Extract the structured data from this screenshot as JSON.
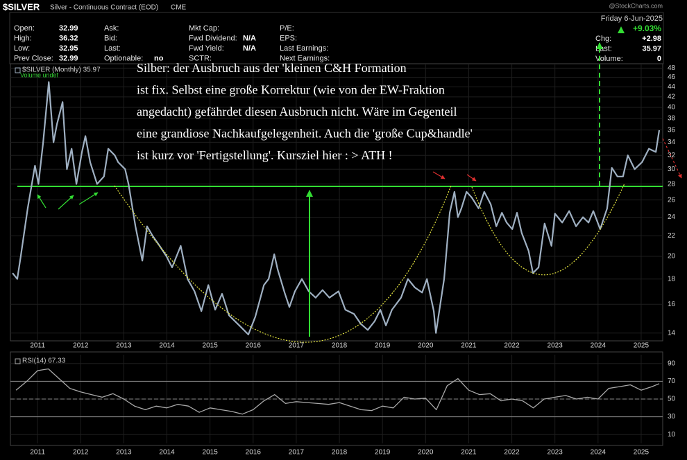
{
  "header": {
    "symbol": "$SILVER",
    "description": "Silver - Continuous Contract (EOD)",
    "exchange": "CME",
    "watermark": "@StockCharts.com",
    "columns": [
      [
        {
          "label": "Open:",
          "value": 32.99
        },
        {
          "label": "High:",
          "value": 36.32
        },
        {
          "label": "Low:",
          "value": 32.95
        },
        {
          "label": "Prev Close:",
          "value": 32.99
        }
      ],
      [
        {
          "label": "Ask:"
        },
        {
          "label": "Bid:"
        },
        {
          "label": "Last:"
        },
        {
          "label": "Optionable:",
          "value": "no"
        }
      ],
      [
        {
          "label": "Mkt Cap:"
        },
        {
          "label": "Fwd Dividend:",
          "value": "N/A"
        },
        {
          "label": "Fwd Yield:",
          "value": "N/A"
        },
        {
          "label": "SCTR:"
        }
      ],
      [
        {
          "label": "P/E:"
        },
        {
          "label": "EPS:"
        },
        {
          "label": "Last Earnings:"
        },
        {
          "label": "Next Earnings:"
        }
      ]
    ],
    "summary": {
      "date": "Friday 6-Jun-2025",
      "change_pct": "+9.03%",
      "fields": [
        {
          "label": "Chg:",
          "value": "+2.98"
        },
        {
          "label": "Last:",
          "value": 35.97
        },
        {
          "label": "Volume:",
          "value": 0
        }
      ]
    }
  },
  "chart_data": [
    {
      "type": "line",
      "log_scale": true,
      "grid": true,
      "legend_extra": "Volume undef",
      "annotation": [
        "Silber: der Ausbruch aus der 'kleinen C&H Formation",
        "ist fix. Selbst eine große Korrektur (wie von der EW-Fraktion",
        "angedacht) gefährdet diesen Ausbruch nicht. Wäre im Gegenteil",
        "eine grandiose Nachkaufgelegenheit. Auch die 'große Cup&handle'",
        "ist kurz vor 'Fertigstellung'. Kursziel hier : > ATH !"
      ],
      "horizontal_line": {
        "value": 27.7,
        "color": "#33dd33"
      },
      "x": [
        2010.42,
        2010.53,
        2010.61,
        2010.77,
        2010.94,
        2011.02,
        2011.13,
        2011.26,
        2011.37,
        2011.45,
        2011.58,
        2011.68,
        2011.79,
        2011.9,
        2012.03,
        2012.11,
        2012.22,
        2012.38,
        2012.54,
        2012.64,
        2012.79,
        2012.87,
        2013.03,
        2013.11,
        2013.27,
        2013.43,
        2013.54,
        2013.67,
        2013.83,
        2013.99,
        2014.12,
        2014.32,
        2014.48,
        2014.64,
        2014.8,
        2014.96,
        2015.12,
        2015.28,
        2015.44,
        2015.68,
        2015.89,
        2016.05,
        2016.25,
        2016.36,
        2016.49,
        2016.57,
        2016.73,
        2016.84,
        2016.97,
        2017.13,
        2017.29,
        2017.45,
        2017.61,
        2017.77,
        2017.98,
        2018.14,
        2018.34,
        2018.5,
        2018.66,
        2018.82,
        2018.95,
        2019.08,
        2019.22,
        2019.43,
        2019.59,
        2019.75,
        2019.92,
        2020.03,
        2020.19,
        2020.24,
        2020.43,
        2020.56,
        2020.67,
        2020.75,
        2020.83,
        2020.95,
        2021.07,
        2021.23,
        2021.36,
        2021.51,
        2021.64,
        2021.77,
        2021.88,
        2022.01,
        2022.12,
        2022.23,
        2022.39,
        2022.49,
        2022.62,
        2022.76,
        2022.92,
        2023.0,
        2023.17,
        2023.33,
        2023.49,
        2023.65,
        2023.78,
        2023.89,
        2024.05,
        2024.21,
        2024.32,
        2024.45,
        2024.58,
        2024.69,
        2024.85,
        2025.02,
        2025.18,
        2025.34,
        2025.42
      ],
      "series": [
        {
          "name": "$SILVER (Monthly) 35.97",
          "color": "#9fb0c2",
          "values": [
            18.5,
            18,
            20,
            25,
            30.5,
            28,
            34,
            45,
            34,
            37,
            41,
            30,
            33,
            28,
            32.5,
            35,
            31,
            28,
            29,
            33,
            32,
            31,
            30,
            28,
            23,
            19.6,
            23,
            22,
            21,
            20,
            19,
            21,
            18,
            17,
            15.5,
            17.5,
            15.6,
            16.8,
            15.2,
            14.5,
            13.9,
            15.1,
            17.5,
            18,
            20.2,
            18.8,
            16.9,
            15.8,
            17,
            18,
            17,
            16.5,
            17.1,
            16.5,
            17,
            15.6,
            15.3,
            14.6,
            14.2,
            14.8,
            15.6,
            14.5,
            15.6,
            16.5,
            18,
            17.3,
            16.9,
            18,
            15.5,
            14,
            18,
            24.5,
            27,
            24,
            25,
            27,
            26.3,
            25,
            27,
            25.5,
            23,
            24.5,
            23.4,
            22.7,
            24.5,
            22.3,
            20.5,
            18.5,
            19,
            23.3,
            21,
            24.4,
            23.4,
            24.7,
            23,
            24,
            23.4,
            24.7,
            22.7,
            25,
            30.2,
            29,
            29,
            32,
            30,
            31,
            33,
            32.5,
            35.97
          ]
        }
      ],
      "xlim": [
        2010.37,
        2025.5
      ],
      "ylim": [
        13.5,
        49
      ],
      "xticks": [
        2011,
        2012,
        2013,
        2014,
        2015,
        2016,
        2017,
        2018,
        2019,
        2020,
        2021,
        2022,
        2023,
        2024,
        2025
      ],
      "yticks": [
        14,
        16,
        18,
        20,
        22,
        24,
        26,
        28,
        30,
        32,
        34,
        36,
        38,
        40,
        42,
        44,
        46,
        48
      ]
    },
    {
      "type": "line",
      "grid": true,
      "levels": [
        30,
        50,
        70
      ],
      "x": [
        2010.5,
        2010.75,
        2011.0,
        2011.25,
        2011.5,
        2011.75,
        2012.0,
        2012.25,
        2012.5,
        2012.75,
        2013.0,
        2013.25,
        2013.5,
        2013.75,
        2014.0,
        2014.25,
        2014.5,
        2014.75,
        2015.0,
        2015.25,
        2015.5,
        2015.75,
        2016.0,
        2016.25,
        2016.5,
        2016.75,
        2017.0,
        2017.25,
        2017.5,
        2017.75,
        2018.0,
        2018.25,
        2018.5,
        2018.75,
        2019.0,
        2019.25,
        2019.5,
        2019.75,
        2020.0,
        2020.25,
        2020.5,
        2020.75,
        2021.0,
        2021.25,
        2021.5,
        2021.75,
        2022.0,
        2022.25,
        2022.5,
        2022.75,
        2023.0,
        2023.25,
        2023.5,
        2023.75,
        2024.0,
        2024.25,
        2024.5,
        2024.75,
        2025.0,
        2025.25,
        2025.42
      ],
      "series": [
        {
          "name": "RSI(14) 67.33",
          "color": "#a8a8a8",
          "values": [
            60,
            70,
            82,
            84,
            73,
            62,
            58,
            55,
            52,
            56,
            50,
            42,
            38,
            42,
            40,
            44,
            42,
            35,
            40,
            38,
            36,
            33,
            38,
            48,
            55,
            45,
            47,
            46,
            45,
            44,
            46,
            42,
            38,
            37,
            42,
            40,
            52,
            50,
            51,
            38,
            65,
            73,
            60,
            55,
            56,
            48,
            50,
            48,
            40,
            50,
            52,
            54,
            50,
            52,
            50,
            62,
            64,
            66,
            60,
            64,
            67.33
          ]
        }
      ],
      "xlim": [
        2010.37,
        2025.5
      ],
      "ylim": [
        0,
        100
      ],
      "xticks": [
        2011,
        2012,
        2013,
        2014,
        2015,
        2016,
        2017,
        2018,
        2019,
        2020,
        2021,
        2022,
        2023,
        2024,
        2025
      ],
      "yticks": [
        10,
        30,
        50,
        70,
        90
      ]
    }
  ]
}
